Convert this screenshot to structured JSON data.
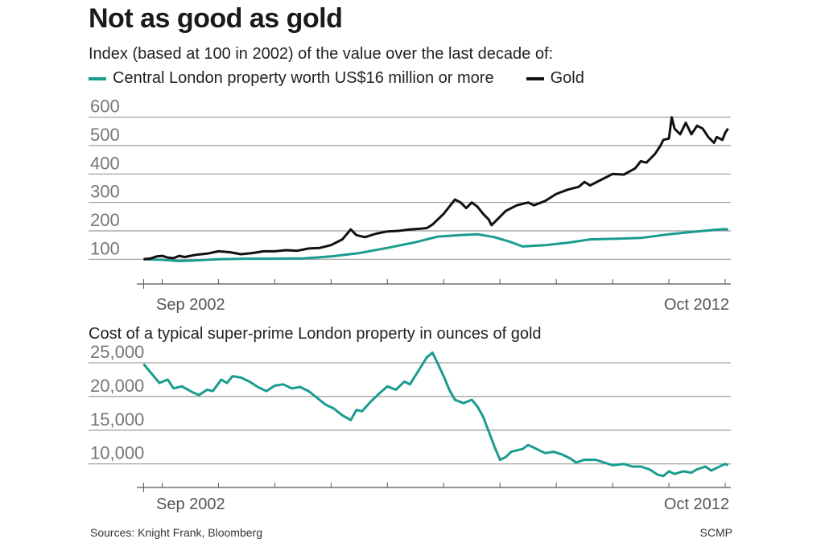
{
  "title": "Not as good as gold",
  "subtitle": "Index (based at 100 in 2002) of the value over the last decade of:",
  "legend": [
    {
      "label": "Central London property worth US$16 million or more",
      "color": "#1a9c8f"
    },
    {
      "label": "Gold",
      "color": "#111111"
    }
  ],
  "chart2_title": "Cost of a typical super-prime London property in ounces of gold",
  "sources": "Sources: Knight Frank, Bloomberg",
  "credit": "SCMP",
  "chart_data": [
    {
      "type": "line",
      "ytick_labels": [
        "100",
        "200",
        "300",
        "400",
        "500",
        "600"
      ],
      "yticks": [
        100,
        200,
        300,
        400,
        500,
        600
      ],
      "ylim": [
        50,
        650
      ],
      "xlim": [
        2002.55,
        2013.1
      ],
      "xtick_labels": [
        "Sep 2002",
        "Oct 2012"
      ],
      "grid": true,
      "series": [
        {
          "name": "Central London property worth US$16 million or more",
          "color": "#1a9c8f",
          "points": [
            [
              2002.67,
              100
            ],
            [
              2003.0,
              98
            ],
            [
              2003.3,
              94
            ],
            [
              2003.6,
              96
            ],
            [
              2004.0,
              100
            ],
            [
              2004.5,
              102
            ],
            [
              2005.0,
              102
            ],
            [
              2005.5,
              103
            ],
            [
              2006.0,
              110
            ],
            [
              2006.5,
              122
            ],
            [
              2007.0,
              140
            ],
            [
              2007.5,
              160
            ],
            [
              2007.9,
              180
            ],
            [
              2008.3,
              185
            ],
            [
              2008.6,
              188
            ],
            [
              2008.9,
              178
            ],
            [
              2009.2,
              160
            ],
            [
              2009.4,
              145
            ],
            [
              2009.8,
              150
            ],
            [
              2010.2,
              158
            ],
            [
              2010.6,
              170
            ],
            [
              2011.0,
              172
            ],
            [
              2011.5,
              175
            ],
            [
              2012.0,
              188
            ],
            [
              2012.5,
              198
            ],
            [
              2012.9,
              205
            ],
            [
              2013.0,
              206
            ],
            [
              2013.05,
              205
            ]
          ]
        },
        {
          "name": "Gold",
          "color": "#111111",
          "points": [
            [
              2002.67,
              100
            ],
            [
              2002.8,
              103
            ],
            [
              2002.9,
              110
            ],
            [
              2003.0,
              112
            ],
            [
              2003.1,
              106
            ],
            [
              2003.2,
              104
            ],
            [
              2003.3,
              112
            ],
            [
              2003.4,
              108
            ],
            [
              2003.6,
              116
            ],
            [
              2003.8,
              120
            ],
            [
              2004.0,
              128
            ],
            [
              2004.2,
              125
            ],
            [
              2004.4,
              118
            ],
            [
              2004.6,
              122
            ],
            [
              2004.8,
              128
            ],
            [
              2005.0,
              128
            ],
            [
              2005.2,
              132
            ],
            [
              2005.4,
              130
            ],
            [
              2005.6,
              138
            ],
            [
              2005.8,
              140
            ],
            [
              2006.0,
              150
            ],
            [
              2006.2,
              170
            ],
            [
              2006.35,
              205
            ],
            [
              2006.45,
              185
            ],
            [
              2006.6,
              178
            ],
            [
              2006.8,
              190
            ],
            [
              2007.0,
              198
            ],
            [
              2007.2,
              200
            ],
            [
              2007.4,
              205
            ],
            [
              2007.6,
              208
            ],
            [
              2007.7,
              210
            ],
            [
              2007.8,
              222
            ],
            [
              2008.0,
              260
            ],
            [
              2008.1,
              285
            ],
            [
              2008.2,
              310
            ],
            [
              2008.3,
              300
            ],
            [
              2008.4,
              280
            ],
            [
              2008.5,
              300
            ],
            [
              2008.6,
              285
            ],
            [
              2008.7,
              260
            ],
            [
              2008.8,
              240
            ],
            [
              2008.85,
              220
            ],
            [
              2008.95,
              240
            ],
            [
              2009.1,
              270
            ],
            [
              2009.3,
              290
            ],
            [
              2009.5,
              300
            ],
            [
              2009.6,
              290
            ],
            [
              2009.8,
              305
            ],
            [
              2010.0,
              330
            ],
            [
              2010.2,
              345
            ],
            [
              2010.4,
              355
            ],
            [
              2010.5,
              372
            ],
            [
              2010.6,
              360
            ],
            [
              2010.8,
              380
            ],
            [
              2011.0,
              400
            ],
            [
              2011.2,
              398
            ],
            [
              2011.4,
              420
            ],
            [
              2011.5,
              445
            ],
            [
              2011.6,
              440
            ],
            [
              2011.75,
              470
            ],
            [
              2011.85,
              500
            ],
            [
              2011.9,
              520
            ],
            [
              2012.0,
              525
            ],
            [
              2012.05,
              600
            ],
            [
              2012.1,
              560
            ],
            [
              2012.2,
              540
            ],
            [
              2012.3,
              580
            ],
            [
              2012.4,
              540
            ],
            [
              2012.5,
              570
            ],
            [
              2012.6,
              560
            ],
            [
              2012.7,
              530
            ],
            [
              2012.8,
              510
            ],
            [
              2012.85,
              530
            ],
            [
              2012.95,
              520
            ],
            [
              2013.0,
              545
            ],
            [
              2013.05,
              560
            ]
          ]
        }
      ]
    },
    {
      "type": "line",
      "ytick_labels": [
        "10,000",
        "15,000",
        "20,000",
        "25,000"
      ],
      "yticks": [
        10000,
        15000,
        20000,
        25000
      ],
      "ylim": [
        6500,
        27500
      ],
      "xlim": [
        2002.55,
        2013.1
      ],
      "xtick_labels": [
        "Sep 2002",
        "Oct 2012"
      ],
      "grid": true,
      "series": [
        {
          "name": "",
          "color": "#1a9c8f",
          "points": [
            [
              2002.67,
              24800
            ],
            [
              2002.8,
              23500
            ],
            [
              2002.95,
              22000
            ],
            [
              2003.1,
              22500
            ],
            [
              2003.2,
              21200
            ],
            [
              2003.35,
              21500
            ],
            [
              2003.5,
              20800
            ],
            [
              2003.65,
              20200
            ],
            [
              2003.8,
              21000
            ],
            [
              2003.9,
              20800
            ],
            [
              2004.05,
              22500
            ],
            [
              2004.15,
              22000
            ],
            [
              2004.25,
              23000
            ],
            [
              2004.4,
              22800
            ],
            [
              2004.55,
              22200
            ],
            [
              2004.7,
              21400
            ],
            [
              2004.85,
              20800
            ],
            [
              2005.0,
              21600
            ],
            [
              2005.15,
              21800
            ],
            [
              2005.3,
              21200
            ],
            [
              2005.45,
              21400
            ],
            [
              2005.6,
              20800
            ],
            [
              2005.75,
              19800
            ],
            [
              2005.9,
              18800
            ],
            [
              2006.05,
              18200
            ],
            [
              2006.2,
              17200
            ],
            [
              2006.35,
              16500
            ],
            [
              2006.45,
              18000
            ],
            [
              2006.55,
              17800
            ],
            [
              2006.7,
              19200
            ],
            [
              2006.85,
              20400
            ],
            [
              2007.0,
              21500
            ],
            [
              2007.15,
              21000
            ],
            [
              2007.3,
              22200
            ],
            [
              2007.4,
              21800
            ],
            [
              2007.55,
              23800
            ],
            [
              2007.7,
              25800
            ],
            [
              2007.8,
              26500
            ],
            [
              2007.9,
              24800
            ],
            [
              2008.0,
              23000
            ],
            [
              2008.1,
              21000
            ],
            [
              2008.2,
              19500
            ],
            [
              2008.35,
              19000
            ],
            [
              2008.5,
              19500
            ],
            [
              2008.6,
              18500
            ],
            [
              2008.7,
              17000
            ],
            [
              2008.8,
              14800
            ],
            [
              2008.9,
              12600
            ],
            [
              2009.0,
              10600
            ],
            [
              2009.1,
              11000
            ],
            [
              2009.2,
              11800
            ],
            [
              2009.4,
              12200
            ],
            [
              2009.5,
              12800
            ],
            [
              2009.65,
              12200
            ],
            [
              2009.8,
              11600
            ],
            [
              2009.95,
              11800
            ],
            [
              2010.1,
              11400
            ],
            [
              2010.25,
              10800
            ],
            [
              2010.35,
              10200
            ],
            [
              2010.5,
              10600
            ],
            [
              2010.7,
              10600
            ],
            [
              2010.85,
              10200
            ],
            [
              2011.0,
              9800
            ],
            [
              2011.2,
              10000
            ],
            [
              2011.35,
              9600
            ],
            [
              2011.5,
              9600
            ],
            [
              2011.65,
              9200
            ],
            [
              2011.8,
              8400
            ],
            [
              2011.9,
              8200
            ],
            [
              2012.0,
              8900
            ],
            [
              2012.1,
              8500
            ],
            [
              2012.25,
              8900
            ],
            [
              2012.4,
              8700
            ],
            [
              2012.5,
              9200
            ],
            [
              2012.65,
              9600
            ],
            [
              2012.75,
              9000
            ],
            [
              2012.85,
              9400
            ],
            [
              2012.95,
              9800
            ],
            [
              2013.0,
              10000
            ],
            [
              2013.05,
              9800
            ]
          ]
        }
      ]
    }
  ]
}
